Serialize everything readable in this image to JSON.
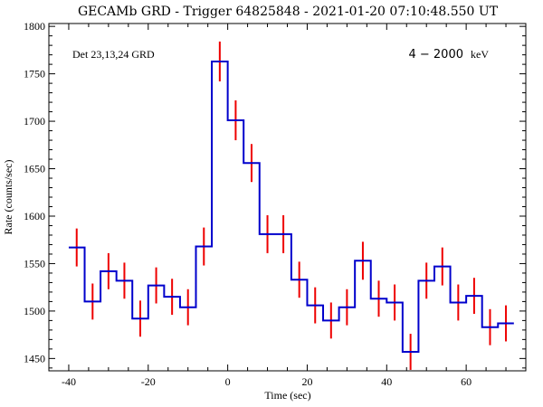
{
  "chart_data": {
    "type": "line",
    "title": "GECAMb GRD - Trigger 64825848 - 2021-01-20 07:10:48.550 UT",
    "xlabel": "Time (sec)",
    "ylabel": "Rate (counts/sec)",
    "xlim": [
      -45,
      75
    ],
    "ylim": [
      1437,
      1803
    ],
    "xticks": [
      -40,
      -20,
      0,
      20,
      40,
      60
    ],
    "yticks": [
      1450,
      1500,
      1550,
      1600,
      1650,
      1700,
      1750,
      1800
    ],
    "grid": false,
    "annotations": {
      "detector": "Det 23,13,24 GRD",
      "energy_value": "4 − 2000",
      "energy_unit": "keV"
    },
    "series": [
      {
        "style": "step",
        "color": "#0000cc",
        "error_color": "#ee0000",
        "bin_width": 4,
        "x": [
          -38,
          -34,
          -30,
          -26,
          -22,
          -18,
          -14,
          -10,
          -6,
          -2,
          2,
          6,
          10,
          14,
          18,
          22,
          26,
          30,
          34,
          38,
          42,
          46,
          50,
          54,
          58,
          62,
          66,
          70
        ],
        "y": [
          1567,
          1510,
          1542,
          1532,
          1492,
          1527,
          1515,
          1504,
          1568,
          1763,
          1701,
          1656,
          1581,
          1581,
          1533,
          1506,
          1490,
          1504,
          1553,
          1513,
          1509,
          1457,
          1532,
          1547,
          1509,
          1516,
          1483,
          1487
        ],
        "err": [
          20,
          19,
          19,
          19,
          19,
          19,
          19,
          19,
          20,
          21,
          21,
          20,
          20,
          20,
          19,
          19,
          19,
          19,
          20,
          19,
          19,
          19,
          19,
          20,
          19,
          19,
          19,
          19
        ]
      }
    ]
  }
}
